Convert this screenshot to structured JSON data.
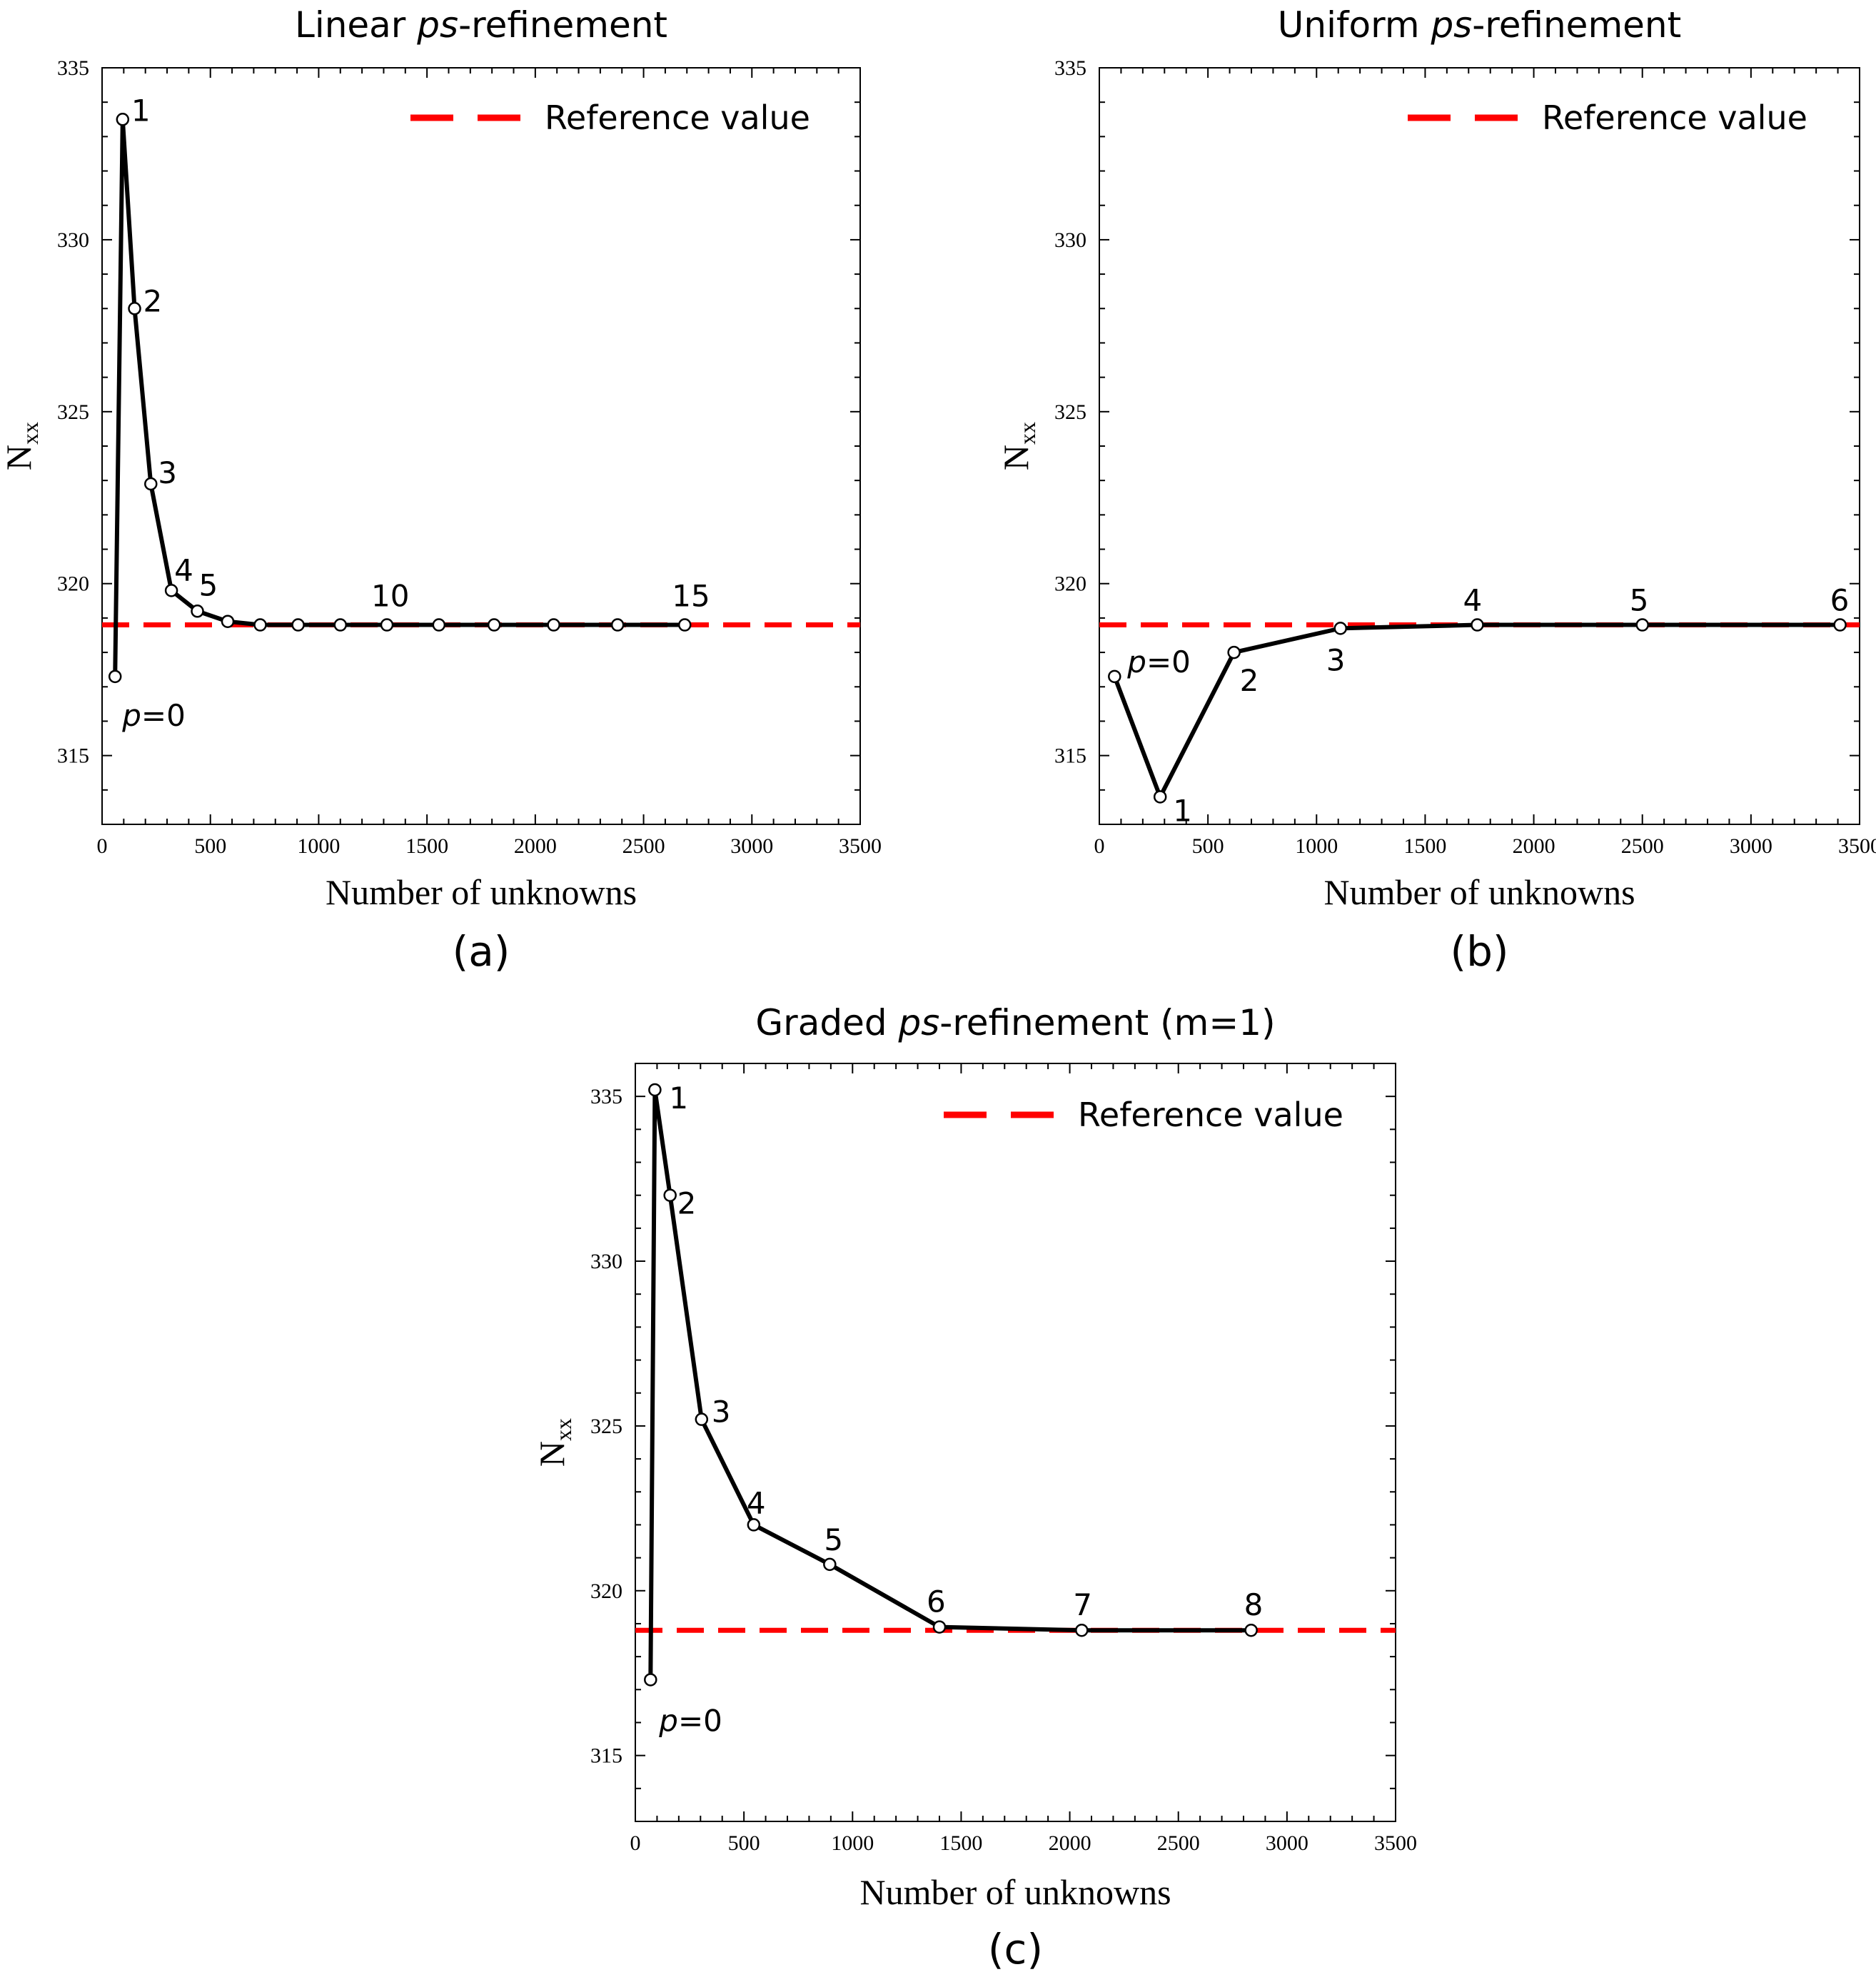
{
  "chart_data": [
    {
      "id": "a",
      "type": "line",
      "title_prefix": "Linear ",
      "title_italic": "ps",
      "title_suffix": "-refinement",
      "caption": "(a)",
      "xlabel": "Number of unknowns",
      "ylabel": "N",
      "ylabel_sub": "xx",
      "xlim": [
        0,
        3500
      ],
      "ylim": [
        313,
        335
      ],
      "xticks": [
        0,
        500,
        1000,
        1500,
        2000,
        2500,
        3000,
        3500
      ],
      "yticks": [
        315,
        320,
        325,
        330,
        335
      ],
      "reference_value": 318.8,
      "legend": "Reference value",
      "series": [
        {
          "name": "Linear ps-refinement",
          "x": [
            60,
            95,
            150,
            225,
            320,
            440,
            580,
            730,
            905,
            1100,
            1315,
            1555,
            1810,
            2085,
            2380,
            2690
          ],
          "y": [
            317.3,
            333.5,
            328.0,
            322.9,
            319.8,
            319.2,
            318.9,
            318.8,
            318.8,
            318.8,
            318.8,
            318.8,
            318.8,
            318.8,
            318.8,
            318.8
          ]
        }
      ],
      "point_labels": [
        {
          "index": 0,
          "text": "=0",
          "italic_prefix": "p"
        },
        {
          "index": 1,
          "text": "1"
        },
        {
          "index": 2,
          "text": "2"
        },
        {
          "index": 3,
          "text": "3"
        },
        {
          "index": 4,
          "text": "4"
        },
        {
          "index": 5,
          "text": "5"
        },
        {
          "index": 10,
          "text": "10"
        },
        {
          "index": 15,
          "text": "15"
        }
      ]
    },
    {
      "id": "b",
      "type": "line",
      "title_prefix": "Uniform ",
      "title_italic": "ps",
      "title_suffix": "-refinement",
      "caption": "(b)",
      "xlabel": "Number of unknowns",
      "ylabel": "N",
      "ylabel_sub": "xx",
      "xlim": [
        0,
        3500
      ],
      "ylim": [
        313,
        335
      ],
      "xticks": [
        0,
        500,
        1000,
        1500,
        2000,
        2500,
        3000,
        3500
      ],
      "yticks": [
        315,
        320,
        325,
        330,
        335
      ],
      "reference_value": 318.8,
      "legend": "Reference value",
      "series": [
        {
          "name": "Uniform ps-refinement",
          "x": [
            70,
            280,
            620,
            1110,
            1740,
            2500,
            3410
          ],
          "y": [
            317.3,
            313.8,
            318.0,
            318.7,
            318.8,
            318.8,
            318.8
          ]
        }
      ],
      "point_labels": [
        {
          "index": 0,
          "text": "=0",
          "italic_prefix": "p"
        },
        {
          "index": 1,
          "text": "1"
        },
        {
          "index": 2,
          "text": "2"
        },
        {
          "index": 3,
          "text": "3"
        },
        {
          "index": 4,
          "text": "4"
        },
        {
          "index": 5,
          "text": "5"
        },
        {
          "index": 6,
          "text": "6"
        }
      ]
    },
    {
      "id": "c",
      "type": "line",
      "title_prefix": "Graded ",
      "title_italic": "ps",
      "title_suffix": "-refinement (m=1)",
      "caption": "(c)",
      "xlabel": "Number of unknowns",
      "ylabel": "N",
      "ylabel_sub": "xx",
      "xlim": [
        0,
        3500
      ],
      "ylim": [
        313,
        336
      ],
      "xticks": [
        0,
        500,
        1000,
        1500,
        2000,
        2500,
        3000,
        3500
      ],
      "yticks": [
        315,
        320,
        325,
        330,
        335
      ],
      "reference_value": 318.8,
      "legend": "Reference value",
      "series": [
        {
          "name": "Graded ps-refinement (m=1)",
          "x": [
            70,
            90,
            160,
            305,
            545,
            895,
            1400,
            2055,
            2835
          ],
          "y": [
            317.3,
            335.2,
            332.0,
            325.2,
            322.0,
            320.8,
            318.9,
            318.8,
            318.8
          ]
        }
      ],
      "point_labels": [
        {
          "index": 0,
          "text": "=0",
          "italic_prefix": "p"
        },
        {
          "index": 1,
          "text": "1"
        },
        {
          "index": 2,
          "text": "2"
        },
        {
          "index": 3,
          "text": "3"
        },
        {
          "index": 4,
          "text": "4"
        },
        {
          "index": 5,
          "text": "5"
        },
        {
          "index": 6,
          "text": "6"
        },
        {
          "index": 7,
          "text": "7"
        },
        {
          "index": 8,
          "text": "8"
        }
      ]
    }
  ]
}
